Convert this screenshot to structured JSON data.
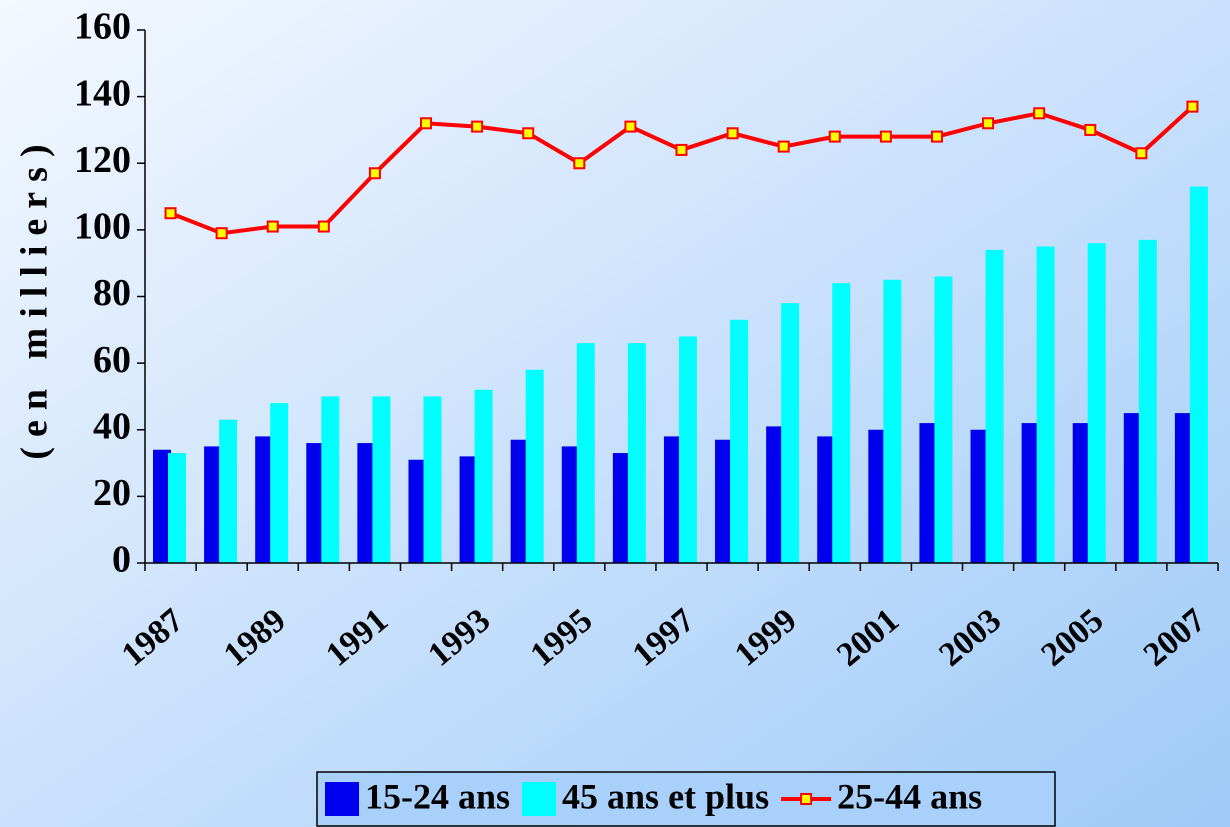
{
  "chart_data": {
    "type": "bar_line",
    "y_label": "(en milliers)",
    "categories": [
      "1987",
      null,
      "1989",
      null,
      "1991",
      null,
      "1993",
      null,
      "1995",
      null,
      "1997",
      null,
      "1999",
      null,
      "2001",
      null,
      "2003",
      null,
      "2005",
      null,
      "2007"
    ],
    "series": [
      {
        "name": "15-24 ans",
        "kind": "bar",
        "color": "#0000ee",
        "values": [
          34,
          35,
          38,
          36,
          36,
          31,
          32,
          37,
          35,
          33,
          38,
          37,
          41,
          38,
          40,
          42,
          40,
          42,
          42,
          45,
          45
        ]
      },
      {
        "name": "45 ans et plus",
        "kind": "bar",
        "color": "#00ffff",
        "values": [
          33,
          43,
          48,
          50,
          50,
          50,
          52,
          58,
          66,
          66,
          68,
          73,
          78,
          84,
          85,
          86,
          94,
          95,
          96,
          97,
          113
        ]
      },
      {
        "name": "25-44 ans",
        "kind": "line",
        "color": "#ff0000",
        "marker_color": "#ffff00",
        "values": [
          105,
          99,
          101,
          101,
          117,
          132,
          131,
          129,
          120,
          131,
          124,
          129,
          125,
          128,
          128,
          128,
          132,
          135,
          130,
          123,
          137
        ]
      }
    ],
    "ylim": [
      0,
      160
    ],
    "yticks": [
      0,
      20,
      40,
      60,
      80,
      100,
      120,
      140,
      160
    ]
  }
}
